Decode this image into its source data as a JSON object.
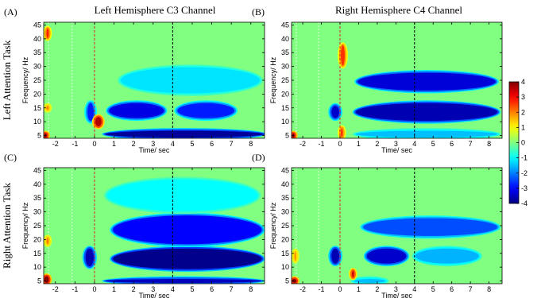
{
  "figure": {
    "column_titles": [
      "Left Hemisphere C3 Channel",
      "Right Hemisphere C4 Channel"
    ],
    "row_titles": [
      "Left Attention Task",
      "Right Attention Task"
    ],
    "colorbar": {
      "ticks": [
        4,
        3,
        2,
        1,
        0,
        -1,
        -2,
        -3,
        -4
      ],
      "tick_labels": [
        "4",
        "3",
        "2",
        "1",
        "0",
        "-1",
        "-2",
        "-3",
        "-4"
      ],
      "min": -4,
      "max": 4,
      "colormap": "jet",
      "colors": [
        "#00008f",
        "#0000ff",
        "#00b4ff",
        "#33e6e6",
        "#8cf07a",
        "#ffff00",
        "#ff8c00",
        "#ff0000",
        "#800000"
      ]
    }
  },
  "chart_data": [
    {
      "type": "heatmap",
      "panel": "(A)",
      "title": "Left Hemisphere C3 Channel",
      "xlabel": "Time/ sec",
      "ylabel": "Frequency/ Hz",
      "xlim": [
        -2.6,
        8.7
      ],
      "ylim": [
        4,
        46
      ],
      "xticks": [
        -2,
        -1,
        0,
        1,
        2,
        3,
        4,
        5,
        6,
        7,
        8
      ],
      "yticks": [
        5,
        10,
        15,
        20,
        25,
        30,
        35,
        40,
        45
      ],
      "markers": [
        {
          "x": 0,
          "color": "#d62728"
        },
        {
          "x": 4,
          "color": "#000000"
        }
      ],
      "regions": [
        {
          "t": [
            0.7,
            3.6
          ],
          "f": [
            11,
            17
          ],
          "value": -3.2
        },
        {
          "t": [
            4.2,
            7.2
          ],
          "f": [
            11,
            17
          ],
          "value": -2.8
        },
        {
          "t": [
            -0.4,
            0.0
          ],
          "f": [
            10,
            17
          ],
          "value": -2.8
        },
        {
          "t": [
            0.5,
            8.7
          ],
          "f": [
            4,
            7
          ],
          "value": -3.8
        },
        {
          "t": [
            1.3,
            8.5
          ],
          "f": [
            20,
            30
          ],
          "value": -1.2
        },
        {
          "t": [
            0.0,
            0.4
          ],
          "f": [
            8,
            12
          ],
          "value": 3.6
        },
        {
          "t": [
            -2.6,
            -2.4
          ],
          "f": [
            4,
            6
          ],
          "value": 4.0
        },
        {
          "t": [
            -2.5,
            -2.3
          ],
          "f": [
            14,
            16
          ],
          "value": 2.0
        },
        {
          "t": [
            -2.5,
            -2.3
          ],
          "f": [
            40,
            44
          ],
          "value": 2.8
        }
      ]
    },
    {
      "type": "heatmap",
      "panel": "(B)",
      "title": "Right Hemisphere C4 Channel",
      "xlabel": "Time/ sec",
      "ylabel": "Frequency/ Hz",
      "xlim": [
        -2.6,
        8.7
      ],
      "ylim": [
        4,
        46
      ],
      "xticks": [
        -2,
        -1,
        0,
        1,
        2,
        3,
        4,
        5,
        6,
        7,
        8
      ],
      "yticks": [
        5,
        10,
        15,
        20,
        25,
        30,
        35,
        40,
        45
      ],
      "markers": [
        {
          "x": 0,
          "color": "#d62728"
        },
        {
          "x": 4,
          "color": "#000000"
        }
      ],
      "regions": [
        {
          "t": [
            0.8,
            8.5
          ],
          "f": [
            10,
            17
          ],
          "value": -3.6
        },
        {
          "t": [
            0.9,
            8.4
          ],
          "f": [
            21,
            28
          ],
          "value": -3.3
        },
        {
          "t": [
            -0.5,
            0.0
          ],
          "f": [
            11,
            16
          ],
          "value": -3.4
        },
        {
          "t": [
            0.8,
            8.5
          ],
          "f": [
            4,
            7
          ],
          "value": -1.5
        },
        {
          "t": [
            0.0,
            0.3
          ],
          "f": [
            30,
            38
          ],
          "value": 2.6
        },
        {
          "t": [
            0.0,
            0.2
          ],
          "f": [
            4,
            8
          ],
          "value": 2.6
        },
        {
          "t": [
            -2.6,
            -2.4
          ],
          "f": [
            4,
            6
          ],
          "value": 4.0
        }
      ]
    },
    {
      "type": "heatmap",
      "panel": "(C)",
      "title": "",
      "xlabel": "Time/ sec",
      "ylabel": "Frequency/ Hz",
      "xlim": [
        -2.6,
        8.7
      ],
      "ylim": [
        4,
        46
      ],
      "xticks": [
        -2,
        -1,
        0,
        1,
        2,
        3,
        4,
        5,
        6,
        7,
        8
      ],
      "yticks": [
        5,
        10,
        15,
        20,
        25,
        30,
        35,
        40,
        45
      ],
      "markers": [
        {
          "x": 0,
          "color": "#d62728"
        },
        {
          "x": 4,
          "color": "#000000"
        }
      ],
      "regions": [
        {
          "t": [
            0.9,
            8.6
          ],
          "f": [
            9,
            17
          ],
          "value": -3.9
        },
        {
          "t": [
            0.9,
            8.6
          ],
          "f": [
            18,
            29
          ],
          "value": -3.0
        },
        {
          "t": [
            -0.5,
            0.0
          ],
          "f": [
            10,
            17
          ],
          "value": -3.6
        },
        {
          "t": [
            0.5,
            8.6
          ],
          "f": [
            4,
            6
          ],
          "value": -3.5
        },
        {
          "t": [
            0.6,
            8.4
          ],
          "f": [
            30,
            42
          ],
          "value": -1.0
        },
        {
          "t": [
            -2.6,
            -2.3
          ],
          "f": [
            4,
            7
          ],
          "value": 4.0
        },
        {
          "t": [
            -2.5,
            -2.3
          ],
          "f": [
            18,
            21
          ],
          "value": 2.0
        }
      ]
    },
    {
      "type": "heatmap",
      "panel": "(D)",
      "title": "",
      "xlabel": "Time/ sec",
      "ylabel": "Frequency/ Hz",
      "xlim": [
        -2.6,
        8.7
      ],
      "ylim": [
        4,
        46
      ],
      "xticks": [
        -2,
        -1,
        0,
        1,
        2,
        3,
        4,
        5,
        6,
        7,
        8
      ],
      "yticks": [
        5,
        10,
        15,
        20,
        25,
        30,
        35,
        40,
        45
      ],
      "markers": [
        {
          "x": 0,
          "color": "#d62728"
        },
        {
          "x": 4,
          "color": "#000000"
        }
      ],
      "regions": [
        {
          "t": [
            1.4,
            3.6
          ],
          "f": [
            11,
            17
          ],
          "value": -3.4
        },
        {
          "t": [
            -0.5,
            0.0
          ],
          "f": [
            11,
            17
          ],
          "value": -3.6
        },
        {
          "t": [
            4.0,
            7.5
          ],
          "f": [
            11,
            17
          ],
          "value": -1.6
        },
        {
          "t": [
            1.2,
            8.5
          ],
          "f": [
            21,
            28
          ],
          "value": -2.4
        },
        {
          "t": [
            0.7,
            2.5
          ],
          "f": [
            4,
            6
          ],
          "value": -1.5
        },
        {
          "t": [
            0.6,
            0.8
          ],
          "f": [
            6,
            9
          ],
          "value": 3.4
        },
        {
          "t": [
            -2.6,
            -2.3
          ],
          "f": [
            4,
            6
          ],
          "value": 4.0
        },
        {
          "t": [
            -2.5,
            -2.3
          ],
          "f": [
            12,
            16
          ],
          "value": 1.8
        }
      ]
    }
  ]
}
